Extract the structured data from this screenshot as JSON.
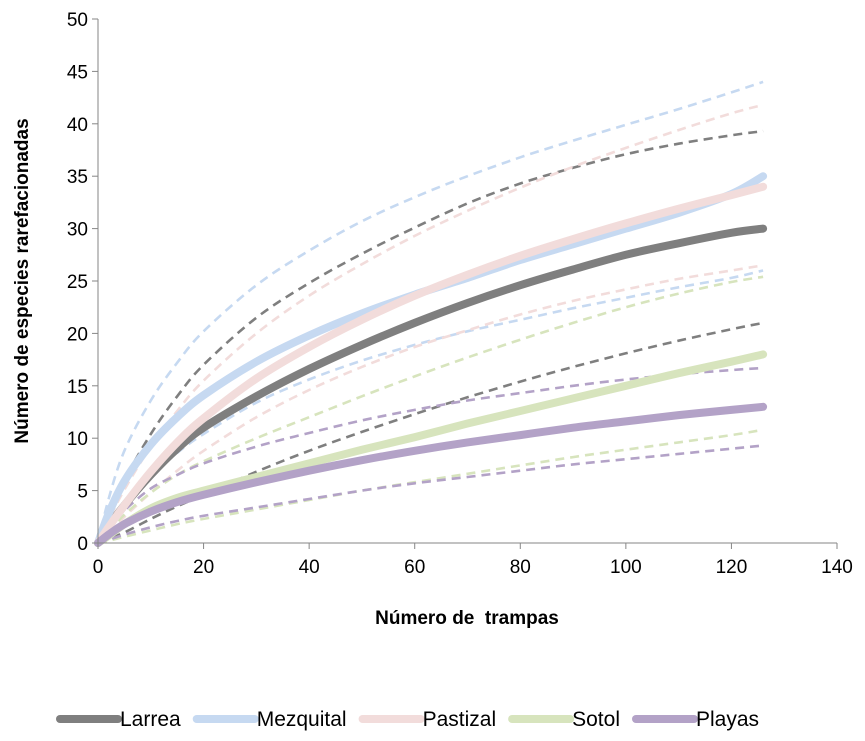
{
  "chart_data": {
    "type": "line",
    "xlabel": "Número de  trampas",
    "ylabel": "Número de especies rarefacionadas",
    "xlim": [
      0,
      140
    ],
    "ylim": [
      0,
      50
    ],
    "xticks": [
      0,
      20,
      40,
      60,
      80,
      100,
      120,
      140
    ],
    "yticks": [
      0,
      5,
      10,
      15,
      20,
      25,
      30,
      35,
      40,
      45,
      50
    ],
    "grid": false,
    "legend": "bottom",
    "x": [
      0,
      2,
      5,
      10,
      15,
      20,
      30,
      40,
      50,
      60,
      70,
      80,
      90,
      100,
      110,
      120,
      126
    ],
    "series": [
      {
        "name": "Larrea",
        "color": "#7f7f7f",
        "values": [
          0,
          1.6,
          3.6,
          6.5,
          9.0,
          11.0,
          14.0,
          16.6,
          18.9,
          21.0,
          22.9,
          24.6,
          26.1,
          27.5,
          28.6,
          29.6,
          30.0
        ],
        "lower": [
          0,
          0.4,
          1.0,
          2.3,
          3.5,
          4.6,
          6.8,
          8.8,
          10.6,
          12.3,
          13.9,
          15.4,
          16.8,
          18.1,
          19.3,
          20.4,
          21.0
        ],
        "upper": [
          0,
          2.6,
          6.0,
          10.4,
          14.0,
          17.0,
          21.5,
          24.8,
          27.6,
          30.1,
          32.4,
          34.3,
          35.8,
          37.1,
          38.1,
          38.9,
          39.3
        ]
      },
      {
        "name": "Mezquital",
        "color": "#c6d9f1",
        "values": [
          0,
          2.8,
          5.9,
          9.4,
          12.0,
          14.1,
          17.3,
          19.8,
          21.9,
          23.7,
          25.3,
          27.0,
          28.5,
          30.0,
          31.5,
          33.3,
          35.0
        ],
        "lower": [
          0,
          1.5,
          3.5,
          6.4,
          8.6,
          10.4,
          13.4,
          15.6,
          17.4,
          18.9,
          20.2,
          21.3,
          22.4,
          23.4,
          24.4,
          25.3,
          26.0
        ],
        "upper": [
          0,
          4.2,
          8.8,
          13.6,
          17.2,
          20.2,
          24.6,
          27.9,
          30.7,
          33.0,
          35.0,
          36.8,
          38.4,
          39.9,
          41.4,
          43.0,
          44.0
        ]
      },
      {
        "name": "Pastizal",
        "color": "#f2dcdb",
        "values": [
          0,
          1.5,
          3.6,
          6.8,
          9.6,
          11.9,
          15.7,
          18.7,
          21.3,
          23.6,
          25.6,
          27.4,
          29.0,
          30.5,
          31.9,
          33.2,
          34.0
        ],
        "lower": [
          0,
          1.0,
          2.5,
          4.8,
          6.9,
          8.8,
          12.0,
          14.6,
          16.8,
          18.7,
          20.3,
          21.8,
          23.1,
          24.2,
          25.2,
          26.0,
          26.5
        ],
        "upper": [
          0,
          2.2,
          5.1,
          9.2,
          12.6,
          15.5,
          20.0,
          23.6,
          26.6,
          29.3,
          31.7,
          33.9,
          35.9,
          37.7,
          39.4,
          41.0,
          41.8
        ]
      },
      {
        "name": "Sotol",
        "color": "#d7e4bd",
        "values": [
          0,
          0.7,
          1.8,
          3.3,
          4.3,
          5.0,
          6.3,
          7.6,
          8.9,
          10.1,
          11.4,
          12.6,
          13.8,
          15.0,
          16.2,
          17.3,
          18.0
        ],
        "lower": [
          0,
          0.2,
          0.6,
          1.2,
          1.8,
          2.3,
          3.2,
          4.1,
          5.0,
          5.8,
          6.6,
          7.4,
          8.2,
          8.9,
          9.6,
          10.3,
          10.8
        ],
        "upper": [
          0,
          1.1,
          2.7,
          4.8,
          6.5,
          7.8,
          10.0,
          12.0,
          14.0,
          15.9,
          17.7,
          19.4,
          21.0,
          22.5,
          23.8,
          24.9,
          25.4
        ]
      },
      {
        "name": "Playas",
        "color": "#b3a2c7",
        "values": [
          0,
          0.8,
          1.8,
          3.0,
          3.9,
          4.6,
          5.8,
          6.9,
          7.9,
          8.8,
          9.6,
          10.3,
          11.0,
          11.6,
          12.2,
          12.7,
          13.0
        ],
        "lower": [
          0,
          0.3,
          0.8,
          1.5,
          2.1,
          2.6,
          3.4,
          4.2,
          5.0,
          5.7,
          6.3,
          6.9,
          7.5,
          8.0,
          8.5,
          9.0,
          9.3
        ],
        "upper": [
          0,
          1.4,
          3.1,
          5.2,
          6.5,
          7.6,
          9.2,
          10.5,
          11.7,
          12.7,
          13.6,
          14.3,
          15.0,
          15.6,
          16.1,
          16.5,
          16.7
        ]
      }
    ]
  }
}
